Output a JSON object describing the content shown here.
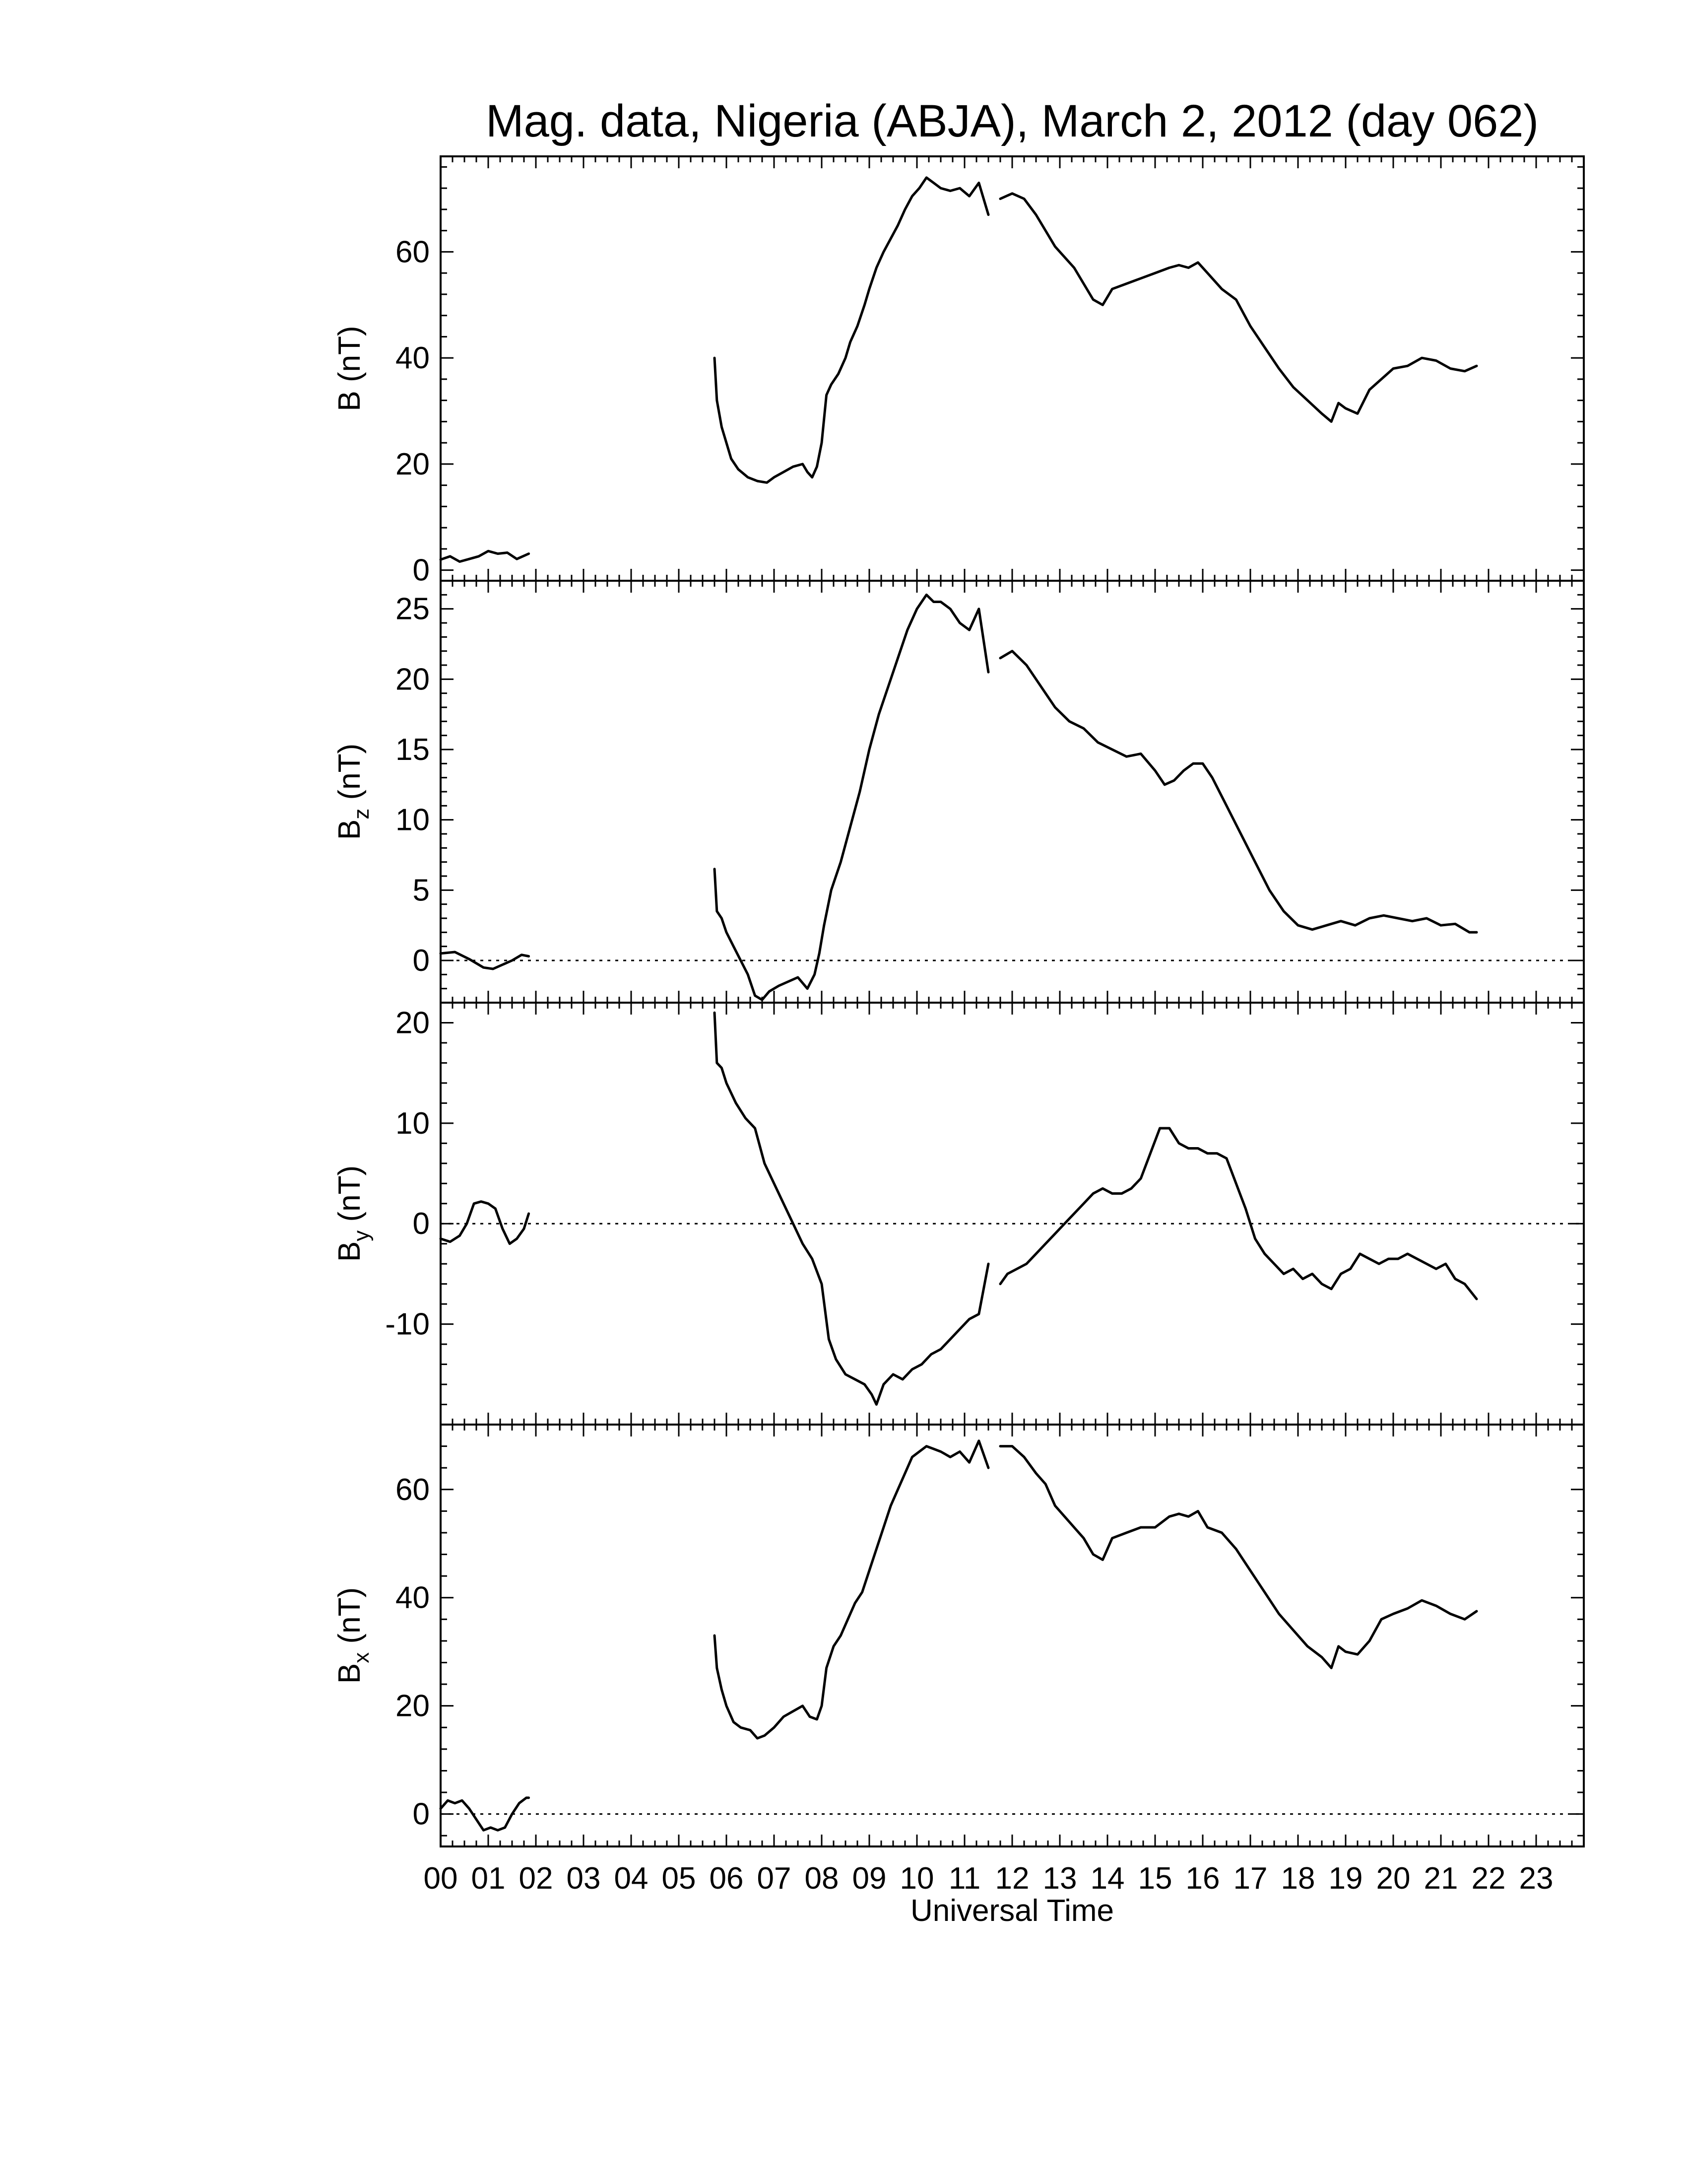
{
  "title": "Mag. data, Nigeria (ABJA), March 2, 2012 (day 062)",
  "xlabel": "Universal Time",
  "x_tick_labels": [
    "00",
    "01",
    "02",
    "03",
    "04",
    "05",
    "06",
    "07",
    "08",
    "09",
    "10",
    "11",
    "12",
    "13",
    "14",
    "15",
    "16",
    "17",
    "18",
    "19",
    "20",
    "21",
    "22",
    "23"
  ],
  "chart_data": [
    {
      "type": "line",
      "ylabel": "B (nT)",
      "ylabel_main": "B",
      "ylabel_sub": "",
      "ylabel_unit": " (nT)",
      "xlim": [
        0,
        24
      ],
      "ylim": [
        -2,
        78
      ],
      "yticks": [
        0,
        20,
        40,
        60
      ],
      "ytick_labels": [
        "0",
        "20",
        "40",
        "60"
      ],
      "zero_line": false,
      "series": [
        {
          "x": [
            0.0,
            0.2,
            0.4,
            0.6,
            0.8,
            1.0,
            1.2,
            1.4,
            1.6,
            1.85
          ],
          "y": [
            2.0,
            2.6,
            1.6,
            2.1,
            2.6,
            3.6,
            3.1,
            3.3,
            2.1,
            3.1
          ]
        },
        {
          "x": [
            5.75,
            5.8,
            5.9,
            6.0,
            6.1,
            6.25,
            6.45,
            6.65,
            6.85,
            7.0,
            7.2,
            7.4,
            7.6,
            7.7,
            7.8,
            7.9,
            8.0,
            8.1,
            8.2,
            8.35,
            8.5,
            8.6,
            8.75,
            8.9,
            9.0,
            9.15,
            9.3,
            9.45,
            9.6,
            9.75,
            9.9,
            10.05,
            10.2,
            10.35,
            10.5,
            10.7,
            10.9,
            11.1,
            11.3,
            11.5
          ],
          "y": [
            40.0,
            32.0,
            27.0,
            24.0,
            21.0,
            19.0,
            17.5,
            16.8,
            16.5,
            17.5,
            18.5,
            19.5,
            20.0,
            18.5,
            17.5,
            19.5,
            24.0,
            33.0,
            35.0,
            37.0,
            40.0,
            43.0,
            46.0,
            50.0,
            53.0,
            57.0,
            60.0,
            62.5,
            65.0,
            68.0,
            70.5,
            72.0,
            74.0,
            73.0,
            72.0,
            71.5,
            72.0,
            70.5,
            73.0,
            67.0
          ]
        },
        {
          "x": [
            11.75,
            12.0,
            12.25,
            12.5,
            12.7,
            12.9,
            13.1,
            13.3,
            13.5,
            13.7,
            13.9,
            14.1,
            14.4,
            14.7,
            15.0,
            15.3,
            15.5,
            15.7,
            15.9,
            16.1,
            16.4,
            16.7,
            17.0,
            17.3,
            17.6,
            17.9,
            18.2,
            18.5,
            18.7,
            18.85,
            19.0,
            19.25,
            19.5,
            19.75,
            20.0,
            20.3,
            20.6,
            20.9,
            21.2,
            21.5,
            21.75
          ],
          "y": [
            70.0,
            71.0,
            70.0,
            67.0,
            64.0,
            61.0,
            59.0,
            57.0,
            54.0,
            51.0,
            50.0,
            53.0,
            54.0,
            55.0,
            56.0,
            57.0,
            57.5,
            57.0,
            58.0,
            56.0,
            53.0,
            51.0,
            46.0,
            42.0,
            38.0,
            34.5,
            32.0,
            29.5,
            28.0,
            31.5,
            30.5,
            29.5,
            34.0,
            36.0,
            38.0,
            38.5,
            40.0,
            39.5,
            38.0,
            37.5,
            38.5
          ]
        }
      ]
    },
    {
      "type": "line",
      "ylabel": "Bz (nT)",
      "ylabel_main": "B",
      "ylabel_sub": "z",
      "ylabel_unit": " (nT)",
      "xlim": [
        0,
        24
      ],
      "ylim": [
        -3,
        27
      ],
      "yticks": [
        0,
        5,
        10,
        15,
        20,
        25
      ],
      "ytick_labels": [
        "0",
        "5",
        "10",
        "15",
        "20",
        "25"
      ],
      "zero_line": true,
      "series": [
        {
          "x": [
            0.0,
            0.3,
            0.6,
            0.9,
            1.1,
            1.3,
            1.5,
            1.7,
            1.85
          ],
          "y": [
            0.5,
            0.6,
            0.1,
            -0.5,
            -0.6,
            -0.3,
            0.0,
            0.4,
            0.3
          ]
        },
        {
          "x": [
            5.75,
            5.8,
            5.9,
            6.0,
            6.15,
            6.3,
            6.45,
            6.6,
            6.75,
            6.9,
            7.1,
            7.3,
            7.5,
            7.7,
            7.85,
            7.95,
            8.05,
            8.2,
            8.4,
            8.6,
            8.8,
            9.0,
            9.2,
            9.4,
            9.6,
            9.8,
            10.0,
            10.2,
            10.35,
            10.5,
            10.7,
            10.9,
            11.1,
            11.3,
            11.5
          ],
          "y": [
            6.5,
            3.5,
            3.0,
            2.0,
            1.0,
            0.0,
            -1.0,
            -2.5,
            -2.8,
            -2.2,
            -1.8,
            -1.5,
            -1.2,
            -2.0,
            -1.0,
            0.5,
            2.5,
            5.0,
            7.0,
            9.5,
            12.0,
            15.0,
            17.5,
            19.5,
            21.5,
            23.5,
            25.0,
            26.0,
            25.5,
            25.5,
            25.0,
            24.0,
            23.5,
            25.0,
            20.5
          ]
        },
        {
          "x": [
            11.75,
            12.0,
            12.3,
            12.6,
            12.9,
            13.2,
            13.5,
            13.8,
            14.1,
            14.4,
            14.7,
            15.0,
            15.2,
            15.4,
            15.6,
            15.8,
            16.0,
            16.2,
            16.5,
            16.8,
            17.1,
            17.4,
            17.7,
            18.0,
            18.3,
            18.6,
            18.9,
            19.2,
            19.5,
            19.8,
            20.1,
            20.4,
            20.7,
            21.0,
            21.3,
            21.6,
            21.75
          ],
          "y": [
            21.5,
            22.0,
            21.0,
            19.5,
            18.0,
            17.0,
            16.5,
            15.5,
            15.0,
            14.5,
            14.7,
            13.5,
            12.5,
            12.8,
            13.5,
            14.0,
            14.0,
            13.0,
            11.0,
            9.0,
            7.0,
            5.0,
            3.5,
            2.5,
            2.2,
            2.5,
            2.8,
            2.5,
            3.0,
            3.2,
            3.0,
            2.8,
            3.0,
            2.5,
            2.6,
            2.0,
            2.0
          ]
        }
      ]
    },
    {
      "type": "line",
      "ylabel": "By (nT)",
      "ylabel_main": "B",
      "ylabel_sub": "y",
      "ylabel_unit": " (nT)",
      "xlim": [
        0,
        24
      ],
      "ylim": [
        -20,
        22
      ],
      "yticks": [
        -10,
        0,
        10,
        20
      ],
      "ytick_labels": [
        "-10",
        "0",
        "10",
        "20"
      ],
      "zero_line": true,
      "series": [
        {
          "x": [
            0.0,
            0.2,
            0.4,
            0.55,
            0.7,
            0.85,
            1.0,
            1.15,
            1.3,
            1.45,
            1.6,
            1.75,
            1.85
          ],
          "y": [
            -1.5,
            -1.8,
            -1.2,
            0.0,
            2.0,
            2.2,
            2.0,
            1.5,
            -0.5,
            -2.0,
            -1.5,
            -0.5,
            1.0
          ]
        },
        {
          "x": [
            5.75,
            5.8,
            5.9,
            6.0,
            6.2,
            6.4,
            6.6,
            6.8,
            7.0,
            7.2,
            7.4,
            7.6,
            7.8,
            8.0,
            8.15,
            8.3,
            8.5,
            8.7,
            8.9,
            9.05,
            9.15,
            9.3,
            9.5,
            9.7,
            9.9,
            10.1,
            10.3,
            10.5,
            10.7,
            10.9,
            11.1,
            11.3,
            11.5
          ],
          "y": [
            21.0,
            16.0,
            15.5,
            14.0,
            12.0,
            10.5,
            9.5,
            6.0,
            4.0,
            2.0,
            0.0,
            -2.0,
            -3.5,
            -6.0,
            -11.5,
            -13.5,
            -15.0,
            -15.5,
            -16.0,
            -17.0,
            -18.0,
            -16.0,
            -15.0,
            -15.5,
            -14.5,
            -14.0,
            -13.0,
            -12.5,
            -11.5,
            -10.5,
            -9.5,
            -9.0,
            -4.0
          ]
        },
        {
          "x": [
            11.75,
            11.9,
            12.1,
            12.3,
            12.5,
            12.7,
            12.9,
            13.1,
            13.3,
            13.5,
            13.7,
            13.9,
            14.1,
            14.3,
            14.5,
            14.7,
            14.9,
            15.1,
            15.3,
            15.5,
            15.7,
            15.9,
            16.1,
            16.3,
            16.5,
            16.7,
            16.9,
            17.1,
            17.3,
            17.5,
            17.7,
            17.9,
            18.1,
            18.3,
            18.5,
            18.7,
            18.9,
            19.1,
            19.3,
            19.5,
            19.7,
            19.9,
            20.1,
            20.3,
            20.5,
            20.7,
            20.9,
            21.1,
            21.3,
            21.5,
            21.75
          ],
          "y": [
            -6.0,
            -5.0,
            -4.5,
            -4.0,
            -3.0,
            -2.0,
            -1.0,
            0.0,
            1.0,
            2.0,
            3.0,
            3.5,
            3.0,
            3.0,
            3.5,
            4.5,
            7.0,
            9.5,
            9.5,
            8.0,
            7.5,
            7.5,
            7.0,
            7.0,
            6.5,
            4.0,
            1.5,
            -1.5,
            -3.0,
            -4.0,
            -5.0,
            -4.5,
            -5.5,
            -5.0,
            -6.0,
            -6.5,
            -5.0,
            -4.5,
            -3.0,
            -3.5,
            -4.0,
            -3.5,
            -3.5,
            -3.0,
            -3.5,
            -4.0,
            -4.5,
            -4.0,
            -5.5,
            -6.0,
            -7.5
          ]
        }
      ]
    },
    {
      "type": "line",
      "ylabel": "Bx (nT)",
      "ylabel_main": "B",
      "ylabel_sub": "x",
      "ylabel_unit": " (nT)",
      "xlim": [
        0,
        24
      ],
      "ylim": [
        -6,
        72
      ],
      "yticks": [
        0,
        20,
        40,
        60
      ],
      "ytick_labels": [
        "0",
        "20",
        "40",
        "60"
      ],
      "zero_line": true,
      "series": [
        {
          "x": [
            0.0,
            0.15,
            0.3,
            0.45,
            0.6,
            0.75,
            0.9,
            1.05,
            1.2,
            1.35,
            1.5,
            1.65,
            1.8,
            1.85
          ],
          "y": [
            1.0,
            2.5,
            2.0,
            2.5,
            1.0,
            -1.0,
            -3.0,
            -2.5,
            -3.0,
            -2.5,
            0.0,
            2.0,
            3.0,
            3.0
          ]
        },
        {
          "x": [
            5.75,
            5.8,
            5.9,
            6.0,
            6.15,
            6.3,
            6.5,
            6.65,
            6.8,
            7.0,
            7.2,
            7.4,
            7.6,
            7.75,
            7.9,
            8.0,
            8.1,
            8.25,
            8.4,
            8.55,
            8.7,
            8.85,
            9.0,
            9.15,
            9.3,
            9.45,
            9.6,
            9.75,
            9.9,
            10.05,
            10.2,
            10.35,
            10.5,
            10.7,
            10.9,
            11.1,
            11.3,
            11.5
          ],
          "y": [
            33.0,
            27.0,
            23.0,
            20.0,
            17.0,
            16.0,
            15.5,
            14.0,
            14.5,
            16.0,
            18.0,
            19.0,
            20.0,
            18.0,
            17.5,
            20.0,
            27.0,
            31.0,
            33.0,
            36.0,
            39.0,
            41.0,
            45.0,
            49.0,
            53.0,
            57.0,
            60.0,
            63.0,
            66.0,
            67.0,
            68.0,
            67.5,
            67.0,
            66.0,
            67.0,
            65.0,
            69.0,
            64.0
          ]
        },
        {
          "x": [
            11.75,
            12.0,
            12.25,
            12.5,
            12.7,
            12.9,
            13.1,
            13.3,
            13.5,
            13.7,
            13.9,
            14.1,
            14.4,
            14.7,
            15.0,
            15.3,
            15.5,
            15.7,
            15.9,
            16.1,
            16.4,
            16.7,
            17.0,
            17.3,
            17.6,
            17.9,
            18.2,
            18.5,
            18.7,
            18.85,
            19.0,
            19.25,
            19.5,
            19.75,
            20.0,
            20.3,
            20.6,
            20.9,
            21.2,
            21.5,
            21.75
          ],
          "y": [
            68.0,
            68.0,
            66.0,
            63.0,
            61.0,
            57.0,
            55.0,
            53.0,
            51.0,
            48.0,
            47.0,
            51.0,
            52.0,
            53.0,
            53.0,
            55.0,
            55.5,
            55.0,
            56.0,
            53.0,
            52.0,
            49.0,
            45.0,
            41.0,
            37.0,
            34.0,
            31.0,
            29.0,
            27.0,
            31.0,
            30.0,
            29.5,
            32.0,
            36.0,
            37.0,
            38.0,
            39.5,
            38.5,
            37.0,
            36.0,
            37.5
          ]
        }
      ]
    }
  ]
}
